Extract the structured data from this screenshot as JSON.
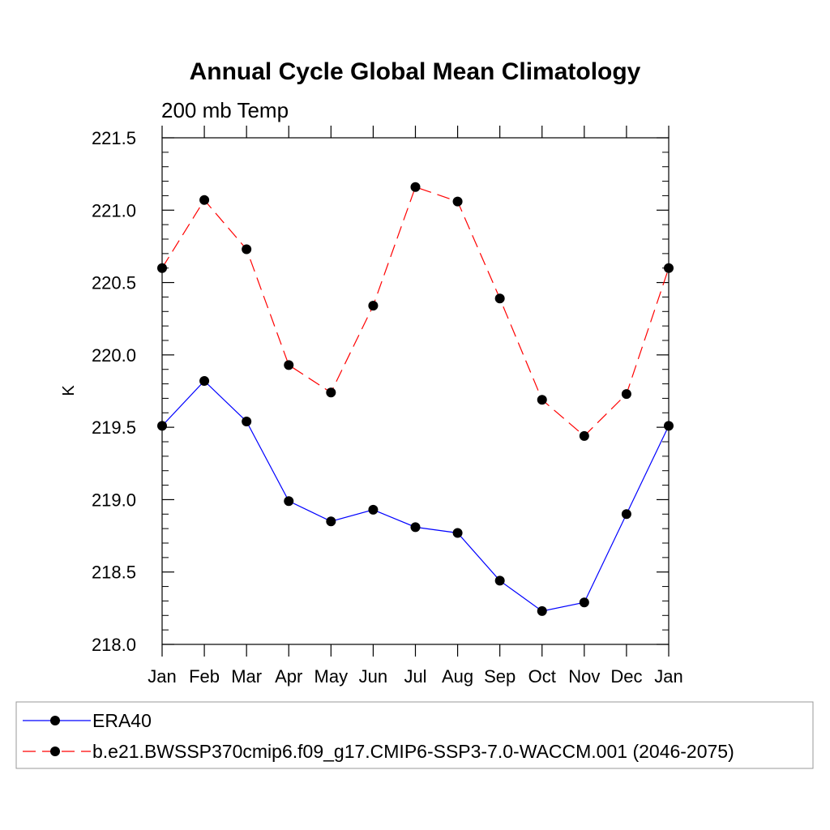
{
  "chart_data": {
    "type": "line",
    "title": "Annual Cycle Global Mean Climatology",
    "subtitle": "200 mb Temp",
    "xlabel": "",
    "ylabel": "K",
    "categories": [
      "Jan",
      "Feb",
      "Mar",
      "Apr",
      "May",
      "Jun",
      "Jul",
      "Aug",
      "Sep",
      "Oct",
      "Nov",
      "Dec",
      "Jan"
    ],
    "ylim": [
      218.0,
      221.5
    ],
    "yticks": [
      218.0,
      218.5,
      219.0,
      219.5,
      220.0,
      220.5,
      221.0,
      221.5
    ],
    "ytick_labels": [
      "218.0",
      "218.5",
      "219.0",
      "219.5",
      "220.0",
      "220.5",
      "221.0",
      "221.5"
    ],
    "grid": false,
    "legend_position": "bottom",
    "series": [
      {
        "name": "ERA40",
        "color": "#0000ff",
        "dash": "solid",
        "values": [
          219.51,
          219.82,
          219.54,
          218.99,
          218.85,
          218.93,
          218.81,
          218.77,
          218.44,
          218.23,
          218.29,
          218.9,
          219.51
        ]
      },
      {
        "name": "b.e21.BWSSP370cmip6.f09_g17.CMIP6-SSP3-7.0-WACCM.001 (2046-2075)",
        "color": "#ff0000",
        "dash": "dashed",
        "values": [
          220.6,
          221.07,
          220.73,
          219.93,
          219.74,
          220.34,
          221.16,
          221.06,
          220.39,
          219.69,
          219.44,
          219.73,
          220.6
        ]
      }
    ]
  }
}
